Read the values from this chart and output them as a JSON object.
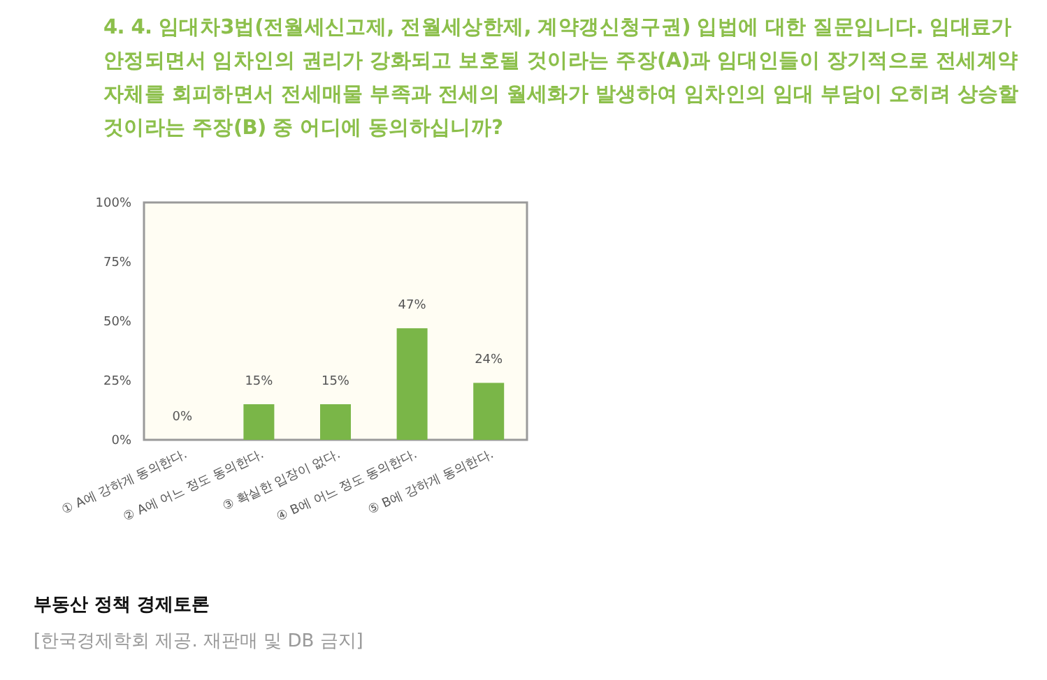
{
  "chart_data": {
    "type": "bar",
    "title": "4. 4. 임대차3법(전월세신고제, 전월세상한제, 계약갱신청구권) 입법에 대한 질문입니다. 임대료가 안정되면서 임차인의 권리가 강화되고 보호될 것이라는 주장(A)과 임대인들이 장기적으로 전세계약 자체를 회피하면서 전세매물 부족과 전세의 월세화가 발생하여 임차인의 임대 부담이 오히려 상승할 것이라는 주장(B) 중 어디에 동의하십니까?",
    "categories": [
      "① A에 강하게 동의한다.",
      "② A에 어느 정도 동의한다.",
      "③ 확실한 입장이 없다.",
      "④ B에 어느 정도 동의한다.",
      "⑤ B에 강하게 동의한다."
    ],
    "values": [
      0,
      15,
      15,
      47,
      24
    ],
    "value_labels": [
      "0%",
      "15%",
      "15%",
      "47%",
      "24%"
    ],
    "color": "#7ab648",
    "ylim": [
      0,
      100
    ],
    "yticks": [
      {
        "value": 0,
        "label": "0%"
      },
      {
        "value": 25,
        "label": "25%"
      },
      {
        "value": 50,
        "label": "50%"
      },
      {
        "value": 75,
        "label": "75%"
      },
      {
        "value": 100,
        "label": "100%"
      }
    ],
    "annotations": [
      "부동산 정책 경제토론",
      "[한국경제학회 제공. 재판매 및 DB 금지]"
    ]
  }
}
